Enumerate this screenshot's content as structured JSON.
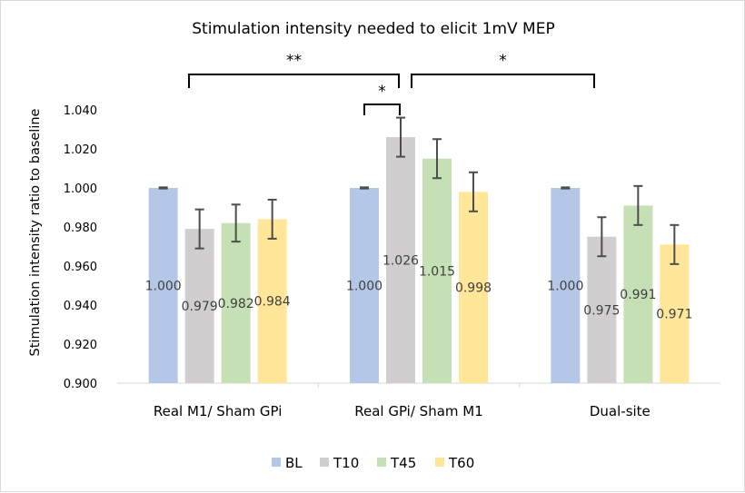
{
  "chart_data": {
    "type": "bar",
    "title": "Stimulation intensity needed to elicit 1mV MEP",
    "xlabel": "",
    "ylabel": "Stimulation intensity ratio to baseline",
    "ylim": [
      0.9,
      1.04
    ],
    "yticks": [
      "0.900",
      "0.920",
      "0.940",
      "0.960",
      "0.980",
      "1.000",
      "1.020",
      "1.040"
    ],
    "ytick_values": [
      0.9,
      0.92,
      0.94,
      0.96,
      0.98,
      1.0,
      1.02,
      1.04
    ],
    "grid": false,
    "legend_position": "bottom",
    "categories": [
      "Real M1/ Sham GPi",
      "Real GPi/ Sham M1",
      "Dual-site"
    ],
    "series": [
      {
        "name": "BL",
        "color": "#b4c7e7",
        "values": [
          1.0,
          1.0,
          1.0
        ],
        "labels": [
          "1.000",
          "1.000",
          "1.000"
        ],
        "errors": [
          0.0003,
          0.0003,
          0.0003
        ]
      },
      {
        "name": "T10",
        "color": "#d0cece",
        "values": [
          0.979,
          1.026,
          0.975
        ],
        "labels": [
          "0.979",
          "1.026",
          "0.975"
        ],
        "errors": [
          0.01,
          0.01,
          0.01
        ]
      },
      {
        "name": "T45",
        "color": "#c5e0b4",
        "values": [
          0.982,
          1.015,
          0.991
        ],
        "labels": [
          "0.982",
          "1.015",
          "0.991"
        ],
        "errors": [
          0.0095,
          0.01,
          0.01
        ]
      },
      {
        "name": "T60",
        "color": "#ffe699",
        "values": [
          0.984,
          0.998,
          0.971
        ],
        "labels": [
          "0.984",
          "0.998",
          "0.971"
        ],
        "errors": [
          0.01,
          0.01,
          0.01
        ]
      }
    ],
    "annotations": [
      {
        "label": "**",
        "from": "Real M1/ Sham GPi",
        "to": "Real GPi/ Sham M1 T10"
      },
      {
        "label": "*",
        "from": "Real GPi/ Sham M1 T10",
        "to": "Dual-site"
      },
      {
        "label": "*",
        "from": "Real GPi/ Sham M1 BL",
        "to": "Real GPi/ Sham M1 T10"
      }
    ]
  }
}
